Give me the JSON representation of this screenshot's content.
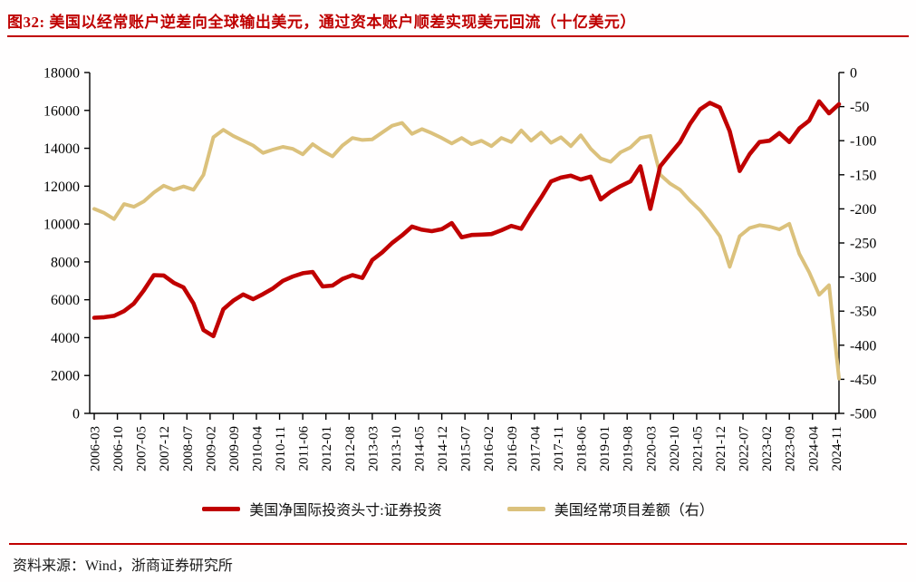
{
  "title": "图32:  美国以经常账户逆差向全球输出美元，通过资本账户顺差实现美元回流（十亿美元）",
  "source": "资料来源：Wind，浙商证券研究所",
  "colors": {
    "title_red": "#bf0000",
    "rule_red": "#c00000",
    "axis_black": "#000000",
    "red_series": "#c00000",
    "tan_series": "#dbc17c"
  },
  "chart_data": {
    "type": "line",
    "title": "美国以经常账户逆差向全球输出美元，通过资本账户顺差实现美元回流（十亿美元）",
    "frequency": "quarterly",
    "x_start": "2006-03",
    "x_end": "2024-12",
    "grid": false,
    "legend_position": "bottom",
    "x_tick_labels": [
      "2006-03",
      "2006-10",
      "2007-05",
      "2007-12",
      "2008-07",
      "2009-02",
      "2009-09",
      "2010-04",
      "2010-11",
      "2011-06",
      "2012-01",
      "2012-08",
      "2013-03",
      "2013-10",
      "2014-05",
      "2014-12",
      "2015-07",
      "2016-02",
      "2016-09",
      "2017-04",
      "2017-11",
      "2018-06",
      "2019-01",
      "2019-08",
      "2020-03",
      "2020-10",
      "2021-05",
      "2021-12",
      "2022-07",
      "2023-02",
      "2023-09",
      "2024-04",
      "2024-11"
    ],
    "left_axis": {
      "min": 0,
      "max": 18000,
      "step": 2000,
      "tick_labels": [
        "0",
        "2000",
        "4000",
        "6000",
        "8000",
        "10000",
        "12000",
        "14000",
        "16000",
        "18000"
      ]
    },
    "right_axis": {
      "min": -500,
      "max": 0,
      "step": 50,
      "tick_labels": [
        "0",
        "-50",
        "-100",
        "-150",
        "-200",
        "-250",
        "-300",
        "-350",
        "-400",
        "-450",
        "-500"
      ]
    },
    "series": [
      {
        "name": "美国净国际投资头寸:证券投资",
        "axis": "left",
        "color": "#c00000",
        "values": [
          5050,
          5080,
          5150,
          5400,
          5800,
          6500,
          7300,
          7280,
          6900,
          6650,
          5800,
          4400,
          4080,
          5500,
          5950,
          6280,
          6030,
          6300,
          6600,
          7000,
          7230,
          7400,
          7470,
          6700,
          6750,
          7100,
          7300,
          7150,
          8100,
          8500,
          9000,
          9400,
          9860,
          9700,
          9620,
          9730,
          10050,
          9300,
          9420,
          9440,
          9470,
          9670,
          9900,
          9750,
          10600,
          11400,
          12250,
          12450,
          12550,
          12350,
          12500,
          11300,
          11700,
          12000,
          12250,
          13050,
          10800,
          13050,
          13700,
          14330,
          15290,
          16050,
          16400,
          16150,
          14900,
          12800,
          13690,
          14330,
          14400,
          14800,
          14330,
          15050,
          15460,
          16480,
          15845,
          16330
        ]
      },
      {
        "name": "美国经常项目差额（右）",
        "axis": "right",
        "color": "#dbc17c",
        "values": [
          -200,
          -206,
          -215,
          -193,
          -197,
          -189,
          -176,
          -166,
          -172,
          -167,
          -172,
          -150,
          -95,
          -84,
          -93,
          -100,
          -107,
          -118,
          -113,
          -109,
          -112,
          -120,
          -105,
          -115,
          -123,
          -107,
          -96,
          -99,
          -98,
          -88,
          -78,
          -74,
          -90,
          -83,
          -89,
          -96,
          -104,
          -96,
          -105,
          -100,
          -108,
          -96,
          -102,
          -85,
          -100,
          -88,
          -103,
          -95,
          -108,
          -92,
          -112,
          -126,
          -131,
          -117,
          -110,
          -96,
          -93,
          -150,
          -163,
          -172,
          -188,
          -202,
          -220,
          -240,
          -285,
          -240,
          -228,
          -224,
          -226,
          -230,
          -222,
          -266,
          -293,
          -326,
          -312,
          -449
        ]
      }
    ]
  }
}
